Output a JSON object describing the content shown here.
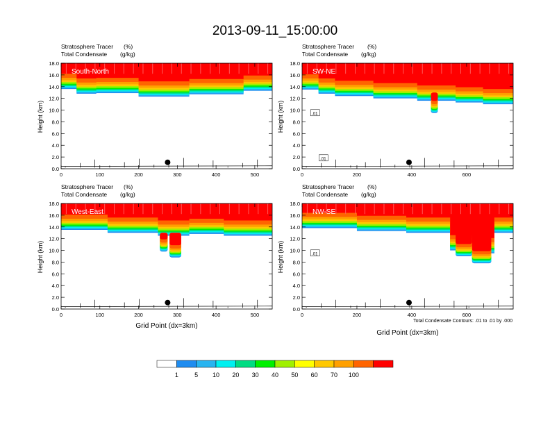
{
  "figure": {
    "title": "2013-09-11_15:00:00",
    "contour_note": "Total Condensate Contours: .01 to .01 by .000"
  },
  "panel_header": {
    "line1_label": "Stratosphere Tracer",
    "line1_unit": "(%)",
    "line2_label": "Total Condensate",
    "line2_unit": "(g/kg)"
  },
  "colorbar": {
    "labels": [
      "1",
      "5",
      "10",
      "20",
      "30",
      "40",
      "50",
      "60",
      "70",
      "100"
    ],
    "colors": [
      "#ffffff",
      "#1e8cf0",
      "#28b4f0",
      "#00f0f0",
      "#00dc82",
      "#00f000",
      "#a0f000",
      "#ffff00",
      "#ffc800",
      "#ffa000",
      "#ff6400",
      "#ff0000"
    ]
  },
  "chart_data": [
    {
      "type": "heatmap",
      "panel_label": "South-North",
      "xlabel": "",
      "ylabel": "Height (km)",
      "xlim": [
        0,
        545
      ],
      "ylim": [
        0,
        18
      ],
      "xticks": [
        0,
        100,
        200,
        300,
        400,
        500
      ],
      "yticks": [
        "0.0",
        "2.0",
        "4.0",
        "6.0",
        "8.0",
        "10.0",
        "12.0",
        "14.0",
        "16.0",
        "18.0"
      ],
      "marker": {
        "x": 275,
        "y": 1.1
      },
      "contour_labels": []
    },
    {
      "type": "heatmap",
      "panel_label": "SW-NE",
      "xlabel": "",
      "ylabel": "Height (km)",
      "xlim": [
        0,
        770
      ],
      "ylim": [
        0,
        18
      ],
      "xticks": [
        0,
        200,
        400,
        600
      ],
      "yticks": [
        "0.0",
        "2.0",
        "4.0",
        "6.0",
        "8.0",
        "10.0",
        "12.0",
        "14.0",
        "16.0",
        "18.0"
      ],
      "marker": {
        "x": 390,
        "y": 1.1
      },
      "contour_labels": [
        ".01",
        ".01"
      ]
    },
    {
      "type": "heatmap",
      "panel_label": "West-East",
      "xlabel": "Grid Point (dx=3km)",
      "ylabel": "Height (km)",
      "xlim": [
        0,
        545
      ],
      "ylim": [
        0,
        18
      ],
      "xticks": [
        0,
        100,
        200,
        300,
        400,
        500
      ],
      "yticks": [
        "0.0",
        "2.0",
        "4.0",
        "6.0",
        "8.0",
        "10.0",
        "12.0",
        "14.0",
        "16.0",
        "18.0"
      ],
      "marker": {
        "x": 275,
        "y": 1.1
      },
      "contour_labels": []
    },
    {
      "type": "heatmap",
      "panel_label": "NW-SE",
      "xlabel": "Grid Point (dx=3km)",
      "ylabel": "Height (km)",
      "xlim": [
        0,
        770
      ],
      "ylim": [
        0,
        18
      ],
      "xticks": [
        0,
        200,
        400,
        600
      ],
      "yticks": [
        "0.0",
        "2.0",
        "4.0",
        "6.0",
        "8.0",
        "10.0",
        "12.0",
        "14.0",
        "16.0",
        "18.0"
      ],
      "marker": {
        "x": 390,
        "y": 1.1
      },
      "contour_labels": [
        ".01"
      ]
    }
  ]
}
